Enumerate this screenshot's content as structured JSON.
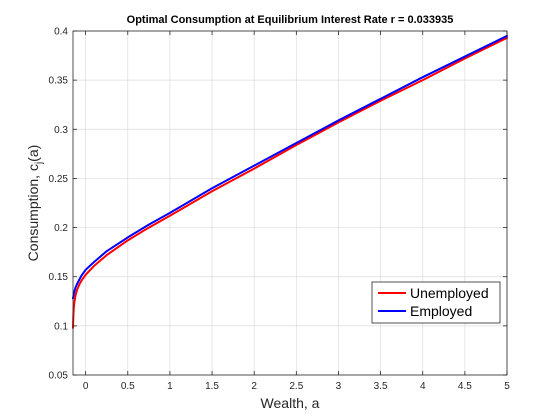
{
  "chart_data": {
    "type": "line",
    "title": "Optimal Consumption at Equilibrium Interest Rate r = 0.033935",
    "xlabel": "Wealth, a",
    "ylabel_main": "Consumption, c",
    "ylabel_sub": "j",
    "ylabel_end": "(a)",
    "xlim": [
      -0.15,
      5
    ],
    "ylim": [
      0.05,
      0.4
    ],
    "xticks": [
      0,
      0.5,
      1,
      1.5,
      2,
      2.5,
      3,
      3.5,
      4,
      4.5,
      5
    ],
    "xtick_labels": [
      "0",
      "0.5",
      "1",
      "1.5",
      "2",
      "2.5",
      "3",
      "3.5",
      "4",
      "4.5",
      "5"
    ],
    "yticks": [
      0.05,
      0.1,
      0.15,
      0.2,
      0.25,
      0.3,
      0.35,
      0.4
    ],
    "ytick_labels": [
      "0.05",
      "0.1",
      "0.15",
      "0.2",
      "0.25",
      "0.3",
      "0.35",
      "0.4"
    ],
    "grid": true,
    "legend_position": "bottom-right",
    "series": [
      {
        "name": "Unemployed",
        "color": "#ff0000",
        "x": [
          -0.15,
          -0.145,
          -0.14,
          -0.13,
          -0.12,
          -0.1,
          -0.075,
          -0.05,
          0,
          0.1,
          0.25,
          0.5,
          0.75,
          1,
          1.5,
          2,
          2.5,
          3,
          3.5,
          4,
          4.5,
          5
        ],
        "y": [
          0.098,
          0.112,
          0.119,
          0.126,
          0.131,
          0.137,
          0.142,
          0.146,
          0.152,
          0.161,
          0.172,
          0.187,
          0.2,
          0.212,
          0.237,
          0.26,
          0.284,
          0.307,
          0.329,
          0.35,
          0.372,
          0.393
        ]
      },
      {
        "name": "Employed",
        "color": "#0000ff",
        "x": [
          -0.15,
          -0.14,
          -0.12,
          -0.1,
          -0.075,
          -0.05,
          0,
          0.1,
          0.25,
          0.5,
          0.75,
          1,
          1.5,
          2,
          2.5,
          3,
          3.5,
          4,
          4.5,
          5
        ],
        "y": [
          0.128,
          0.133,
          0.139,
          0.143,
          0.147,
          0.151,
          0.157,
          0.165,
          0.176,
          0.19,
          0.203,
          0.215,
          0.24,
          0.263,
          0.286,
          0.309,
          0.331,
          0.353,
          0.374,
          0.395
        ]
      }
    ]
  }
}
